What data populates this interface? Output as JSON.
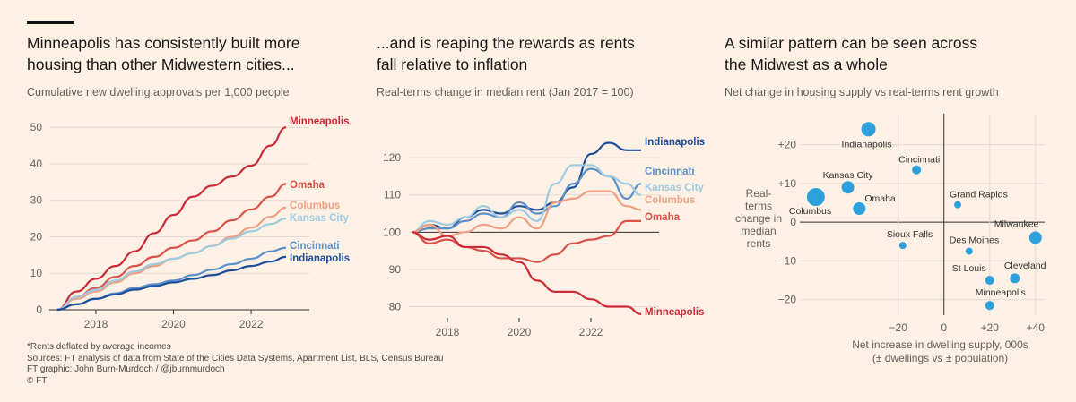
{
  "panels": [
    {
      "title_line1": "Minneapolis has consistently built more",
      "title_line2": "housing than other Midwestern cities...",
      "subtitle": "Cumulative new dwelling approvals per 1,000 people"
    },
    {
      "title_line1": "...and is reaping the rewards as rents",
      "title_line2": "fall relative to inflation",
      "subtitle": "Real-terms change in median rent (Jan 2017 = 100)"
    },
    {
      "title_line1": "A similar pattern can be seen across",
      "title_line2": "the Midwest as a whole",
      "subtitle": "Net change in housing supply vs real-terms rent growth"
    }
  ],
  "colors": {
    "Minneapolis": "#cc2a36",
    "Omaha": "#d9534a",
    "Columbus": "#eea084",
    "Kansas City": "#9fcbe0",
    "Cincinnati": "#5b8fc7",
    "Indianapolis": "#1f4e9a",
    "dots": "#2ea0dc"
  },
  "chart_data": [
    {
      "type": "line",
      "x": [
        2017,
        2017.5,
        2018,
        2018.5,
        2019,
        2019.5,
        2020,
        2020.5,
        2021,
        2021.5,
        2022,
        2022.5,
        2022.9
      ],
      "xlim": [
        2016.8,
        2023.5
      ],
      "ylim": [
        0,
        53
      ],
      "xticks": [
        2018,
        2020,
        2022
      ],
      "yticks": [
        0,
        10,
        20,
        30,
        40,
        50
      ],
      "series": [
        {
          "name": "Minneapolis",
          "values": [
            0,
            5,
            8.5,
            12,
            16,
            21,
            26,
            31,
            34,
            36.5,
            39.5,
            45,
            50
          ]
        },
        {
          "name": "Omaha",
          "values": [
            0,
            3.5,
            6,
            9,
            12,
            14.5,
            17,
            19,
            21.5,
            24.5,
            27.5,
            31,
            34.5
          ]
        },
        {
          "name": "Columbus",
          "values": [
            0,
            3,
            5,
            7.5,
            10,
            12,
            14,
            15.5,
            17.5,
            20,
            22.5,
            25.5,
            28
          ]
        },
        {
          "name": "Kansas City",
          "values": [
            0,
            3.5,
            5.5,
            8,
            10.5,
            12.5,
            14,
            15.5,
            17.5,
            19.5,
            21.5,
            23.5,
            25
          ]
        },
        {
          "name": "Cincinnati",
          "values": [
            0,
            1.5,
            3,
            4.5,
            6,
            7,
            8,
            9.5,
            11,
            12.5,
            14,
            16,
            17
          ]
        },
        {
          "name": "Indianapolis",
          "values": [
            0,
            1.5,
            3,
            4.2,
            5.5,
            6.5,
            7.5,
            8.5,
            9.5,
            10.8,
            12,
            13.2,
            14.5
          ]
        }
      ],
      "label_names": [
        "Minneapolis",
        "Omaha",
        "Columbus",
        "Kansas City",
        "Cincinnati",
        "Indianapolis"
      ]
    },
    {
      "type": "line",
      "x": [
        2017,
        2017.5,
        2018,
        2018.5,
        2019,
        2019.5,
        2020,
        2020.5,
        2021,
        2021.5,
        2022,
        2022.5,
        2023,
        2023.4
      ],
      "xlim": [
        2016.9,
        2023.9
      ],
      "ylim": [
        77,
        127
      ],
      "xticks": [
        2018,
        2020,
        2022
      ],
      "yticks": [
        80,
        90,
        100,
        110,
        120
      ],
      "reference": 100,
      "series": [
        {
          "name": "Indianapolis",
          "values": [
            100,
            102,
            101,
            104,
            106,
            105,
            107,
            106,
            108,
            112,
            121,
            124,
            122,
            122
          ]
        },
        {
          "name": "Cincinnati",
          "values": [
            100,
            101,
            101,
            103,
            105,
            104,
            108,
            105,
            107,
            113,
            117,
            115,
            109,
            113
          ]
        },
        {
          "name": "Kansas City",
          "values": [
            100,
            103,
            102,
            104,
            107,
            104,
            106,
            103,
            113,
            118,
            118,
            115,
            113,
            110
          ]
        },
        {
          "name": "Columbus",
          "values": [
            100,
            102,
            99,
            100,
            102,
            101,
            104,
            101,
            108,
            109,
            111,
            111,
            107,
            106
          ]
        },
        {
          "name": "Omaha",
          "values": [
            100,
            97,
            98,
            96,
            95,
            93,
            93,
            92,
            94,
            97,
            98,
            99,
            103,
            103
          ]
        },
        {
          "name": "Minneapolis",
          "values": [
            100,
            98,
            99,
            96,
            96,
            94,
            92,
            87,
            84,
            84,
            82,
            80,
            80,
            78
          ]
        }
      ],
      "label_names": [
        "Indianapolis",
        "Cincinnati",
        "Kansas City",
        "Columbus",
        "Omaha",
        "Minneapolis"
      ]
    },
    {
      "type": "scatter",
      "xlim": [
        -63,
        44
      ],
      "ylim": [
        -24,
        28
      ],
      "xticks": [
        -20,
        0,
        20,
        40
      ],
      "xtick_labels": [
        "−20",
        "0",
        "+20",
        "+40"
      ],
      "yticks": [
        20,
        10,
        0,
        -10,
        -20
      ],
      "ytick_labels": [
        "+20",
        "+10",
        "0",
        "−10",
        "−20"
      ],
      "xlabel_line1": "Net increase in dwelling supply, 000s",
      "xlabel_line2": "(± dwellings vs ± population)",
      "ylabel_lines": [
        "Real-",
        "terms",
        "change in",
        "median",
        "rents"
      ],
      "points": [
        {
          "name": "Indianapolis",
          "x": -33,
          "y": 24,
          "size": 8
        },
        {
          "name": "Cincinnati",
          "x": -12,
          "y": 13.5,
          "size": 5
        },
        {
          "name": "Kansas City",
          "x": -42,
          "y": 9,
          "size": 7
        },
        {
          "name": "Columbus",
          "x": -56,
          "y": 6.5,
          "size": 10
        },
        {
          "name": "Omaha",
          "x": -37,
          "y": 3.5,
          "size": 7
        },
        {
          "name": "Grand Rapids",
          "x": 6,
          "y": 4.5,
          "size": 4
        },
        {
          "name": "Milwaukee",
          "x": 40,
          "y": -4,
          "size": 7
        },
        {
          "name": "Sioux Falls",
          "x": -18,
          "y": -6,
          "size": 4
        },
        {
          "name": "Des Moines",
          "x": 11,
          "y": -7.5,
          "size": 4
        },
        {
          "name": "St Louis",
          "x": 20,
          "y": -15,
          "size": 5
        },
        {
          "name": "Cleveland",
          "x": 31,
          "y": -14.5,
          "size": 5.5
        },
        {
          "name": "Minneapolis",
          "x": 20,
          "y": -21.5,
          "size": 5
        }
      ]
    }
  ],
  "source": {
    "line1": "*Rents deflated by average incomes",
    "line2": "Sources: FT analysis of data from State of the Cities Data Systems, Apartment List, BLS, Census Bureau",
    "line3": "FT graphic: John Burn-Murdoch / @jburnmurdoch",
    "line4": "© FT"
  }
}
